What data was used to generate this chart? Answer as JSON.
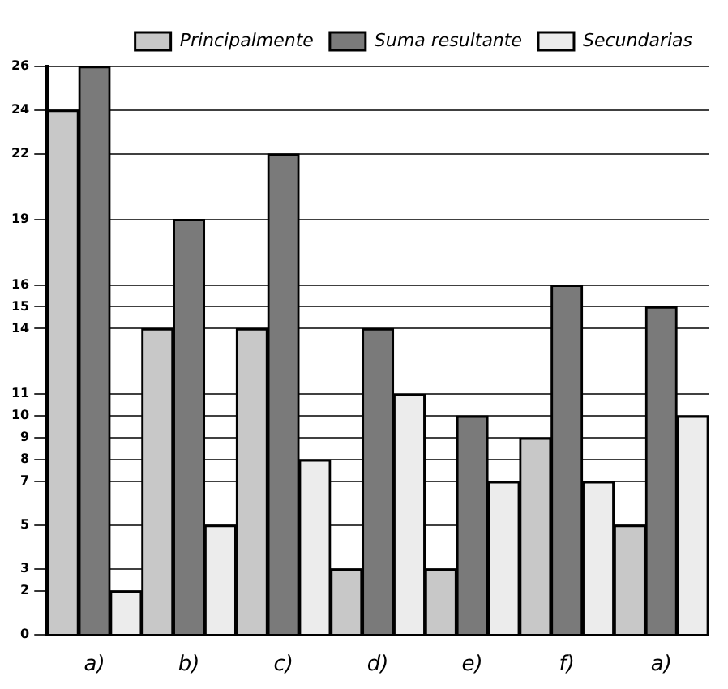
{
  "chart_data": {
    "type": "bar",
    "categories": [
      "a)",
      "b)",
      "c)",
      "d)",
      "e)",
      "f)",
      "a)"
    ],
    "series": [
      {
        "name": "Principalmente",
        "color": "#c8c8c8",
        "values": [
          24,
          14,
          14,
          3,
          3,
          9,
          5
        ]
      },
      {
        "name": "Suma resultante",
        "color": "#7a7a7a",
        "values": [
          26,
          19,
          22,
          14,
          10,
          16,
          15
        ]
      },
      {
        "name": "Secundarias",
        "color": "#ececec",
        "values": [
          2,
          5,
          8,
          11,
          7,
          7,
          10
        ]
      }
    ],
    "ylim": [
      0,
      26
    ],
    "yticks": [
      0,
      2,
      3,
      5,
      7,
      8,
      9,
      10,
      11,
      14,
      15,
      16,
      19,
      22,
      24,
      26
    ],
    "grid": "y",
    "legend": "top right"
  }
}
